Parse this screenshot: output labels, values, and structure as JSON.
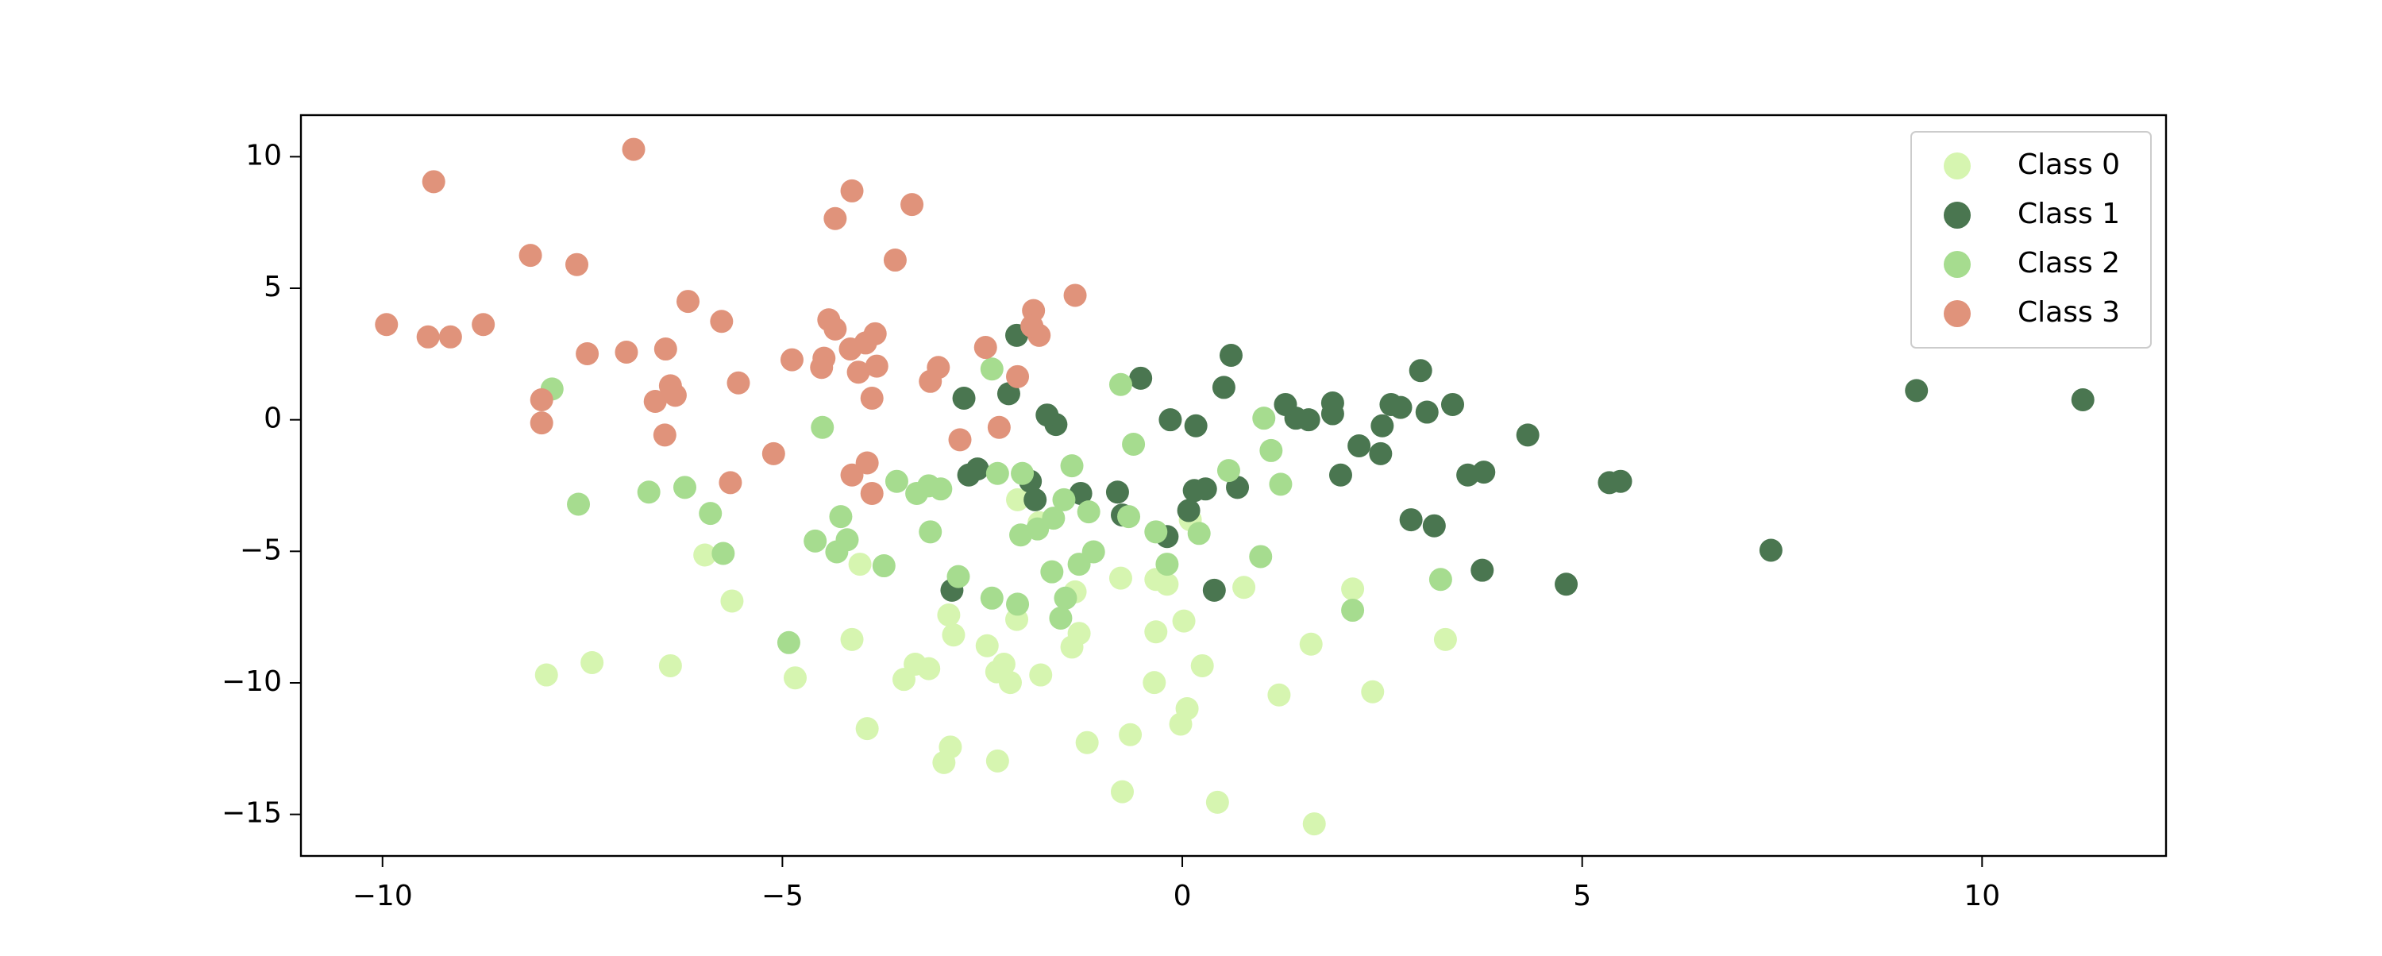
{
  "chart_data": {
    "type": "scatter",
    "xlim": [
      -11.02,
      12.3
    ],
    "ylim": [
      -16.58,
      11.58
    ],
    "xticks": [
      {
        "value": -10,
        "label": "−10"
      },
      {
        "value": -5,
        "label": "−5"
      },
      0,
      5,
      10
    ],
    "yticks": [
      {
        "value": -15,
        "label": "−15"
      },
      {
        "value": -10,
        "label": "−10"
      },
      {
        "value": -5,
        "label": "−5"
      },
      0,
      5,
      10
    ],
    "legend": "upper right",
    "series": [
      {
        "name": "Class 0",
        "color": "#d6f5b0",
        "x": [
          -7.95,
          -7.38,
          -6.4,
          -5.97,
          -5.63,
          -4.84,
          -4.13,
          -4.03,
          -3.94,
          -3.48,
          -3.34,
          -3.17,
          -2.98,
          -2.9,
          -2.92,
          -2.86,
          -2.44,
          -2.32,
          -2.23,
          -2.15,
          -2.31,
          -2.07,
          -2.06,
          -1.79,
          -1.77,
          -1.34,
          -1.38,
          -1.29,
          -1.19,
          -0.77,
          -0.75,
          -0.65,
          -0.33,
          -0.19,
          -0.33,
          -0.35,
          -0.02,
          0.06,
          0.02,
          0.1,
          0.25,
          0.77,
          0.44,
          1.21,
          1.61,
          1.65,
          2.13,
          2.38,
          3.29
        ],
        "values": [
          -9.7,
          -9.23,
          -9.35,
          -5.14,
          -6.89,
          -9.81,
          -8.35,
          -5.49,
          -11.74,
          -9.87,
          -9.29,
          -9.46,
          -13.03,
          -12.44,
          -7.42,
          -8.18,
          -8.59,
          -9.58,
          -9.29,
          -9.99,
          -12.97,
          -7.59,
          -3.04,
          -3.91,
          -9.7,
          -6.54,
          -8.64,
          -8.12,
          -12.27,
          -6.02,
          -14.14,
          -11.97,
          -6.07,
          -6.25,
          -8.06,
          -9.99,
          -11.57,
          -10.98,
          -7.65,
          -3.8,
          -9.35,
          -6.37,
          -14.54,
          -10.46,
          -8.53,
          -15.36,
          -6.43,
          -10.34,
          -8.35
        ]
      },
      {
        "name": "Class 1",
        "color": "#4a7650",
        "x": [
          9.18,
          11.26,
          7.36,
          4.8,
          5.34,
          5.48,
          4.32,
          3.57,
          3.77,
          3.75,
          3.15,
          2.86,
          3.38,
          3.06,
          2.98,
          2.73,
          2.61,
          2.5,
          2.48,
          2.21,
          1.98,
          1.88,
          1.88,
          1.58,
          1.42,
          1.29,
          0.61,
          0.52,
          0.69,
          0.17,
          -0.15,
          -0.52,
          0.29,
          0.15,
          0.08,
          -0.19,
          0.4,
          -0.81,
          -0.75,
          -1.27,
          -1.58,
          -1.69,
          -1.9,
          -1.84,
          -2.17,
          -2.07,
          -2.56,
          -2.67,
          -2.73,
          -2.88
        ],
        "values": [
          1.11,
          0.76,
          -4.96,
          -6.25,
          -2.39,
          -2.34,
          -0.58,
          -2.1,
          -1.99,
          -5.72,
          -4.03,
          -3.8,
          0.58,
          0.29,
          1.87,
          0.47,
          0.58,
          -0.23,
          -1.29,
          -0.99,
          -2.1,
          0.64,
          0.23,
          0,
          0.06,
          0.58,
          2.45,
          1.23,
          -2.57,
          -0.23,
          0,
          1.58,
          -2.63,
          -2.69,
          -3.45,
          -4.44,
          -6.48,
          -2.75,
          -3.62,
          -2.8,
          -0.18,
          0.18,
          -2.34,
          -3.04,
          0.99,
          3.21,
          -1.87,
          -2.1,
          0.82,
          -6.48
        ]
      },
      {
        "name": "Class 2",
        "color": "#a6dc8f",
        "x": [
          -7.88,
          -7.55,
          -6.67,
          -6.22,
          -5.9,
          -5.74,
          -4.5,
          -4.59,
          -4.27,
          -4.19,
          -4.32,
          -4.92,
          -3.73,
          -3.57,
          -3.32,
          -3.17,
          -3.02,
          -3.15,
          -2.8,
          -2.38,
          -2.31,
          -2.0,
          -2.02,
          -1.81,
          -1.61,
          -1.48,
          -1.38,
          -1.17,
          -1.11,
          -1.29,
          -1.63,
          -1.46,
          -1.52,
          -2.06,
          -2.38,
          -0.77,
          -0.61,
          -0.67,
          -0.33,
          -0.19,
          0.21,
          0.58,
          1.02,
          1.11,
          1.23,
          0.98,
          2.13,
          3.23
        ],
        "values": [
          1.17,
          -3.21,
          -2.75,
          -2.57,
          -3.56,
          -5.08,
          -0.29,
          -4.61,
          -3.68,
          -4.56,
          -5.02,
          -8.47,
          -5.55,
          -2.34,
          -2.8,
          -2.51,
          -2.63,
          -4.26,
          -5.96,
          1.93,
          -2.04,
          -2.04,
          -4.38,
          -4.15,
          -3.74,
          -3.04,
          -1.75,
          -3.5,
          -5.02,
          -5.49,
          -5.78,
          -6.78,
          -7.54,
          -7.01,
          -6.78,
          1.34,
          -0.93,
          -3.68,
          -4.26,
          -5.49,
          -4.32,
          -1.93,
          0.06,
          -1.17,
          -2.45,
          -5.2,
          -7.24,
          -6.07
        ]
      },
      {
        "name": "Class 3",
        "color": "#e0937b",
        "x": [
          -9.95,
          -9.36,
          -9.43,
          -9.15,
          -8.74,
          -8.15,
          -7.57,
          -6.86,
          -8.01,
          -8.01,
          -7.44,
          -6.95,
          -6.18,
          -6.46,
          -6.59,
          -6.4,
          -6.34,
          -6.47,
          -5.76,
          -5.55,
          -5.65,
          -5.11,
          -4.88,
          -4.42,
          -4.34,
          -4.48,
          -4.51,
          -4.34,
          -4.13,
          -4.15,
          -3.96,
          -3.84,
          -4.05,
          -3.82,
          -3.88,
          -3.59,
          -3.38,
          -3.94,
          -4.13,
          -3.88,
          -3.15,
          -3.05,
          -2.78,
          -2.46,
          -2.29,
          -2.06,
          -1.86,
          -1.79,
          -1.88,
          -1.34
        ],
        "values": [
          3.62,
          9.05,
          3.15,
          3.15,
          3.62,
          6.25,
          5.9,
          10.28,
          0.76,
          -0.12,
          2.51,
          2.57,
          4.5,
          2.69,
          0.7,
          1.29,
          0.93,
          -0.58,
          3.74,
          1.4,
          -2.39,
          -1.29,
          2.28,
          3.8,
          3.45,
          2.34,
          1.99,
          7.65,
          8.7,
          2.69,
          2.92,
          3.27,
          1.81,
          2.04,
          0.82,
          6.07,
          8.18,
          -1.64,
          -2.1,
          -2.8,
          1.46,
          1.99,
          -0.76,
          2.75,
          -0.29,
          1.64,
          4.15,
          3.21,
          3.56,
          4.73
        ]
      }
    ]
  }
}
